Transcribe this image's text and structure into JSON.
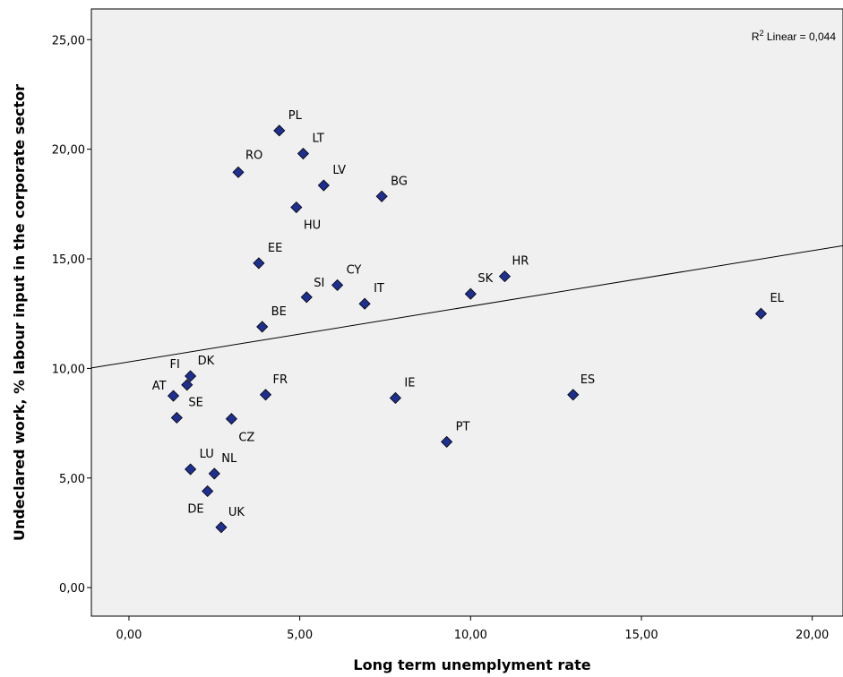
{
  "chart_data": {
    "type": "scatter",
    "title": "",
    "xlabel": "Long term unemplyment rate",
    "ylabel": "Undeclared work, % labour input in the corporate sector",
    "xlim": [
      -1.1,
      20.9
    ],
    "ylim": [
      -1.3,
      26.4
    ],
    "x_ticks": [
      0,
      5,
      10,
      15,
      20
    ],
    "y_ticks": [
      0,
      5,
      10,
      15,
      20,
      25
    ],
    "x_tick_labels": [
      "0,00",
      "5,00",
      "10,00",
      "15,00",
      "20,00"
    ],
    "y_tick_labels": [
      "0,00",
      "5,00",
      "10,00",
      "15,00",
      "20,00",
      "25,00"
    ],
    "grid": false,
    "marker_color": "#1f2f8f",
    "plot_background": "#f0f0f0",
    "fit_line": {
      "type": "linear",
      "intercept": 10.3,
      "slope": 0.2536
    },
    "annotation": {
      "prefix": "R",
      "superscript": "2",
      "text": " Linear = 0,044"
    },
    "points": [
      {
        "label": "PL",
        "x": 4.4,
        "y": 20.85
      },
      {
        "label": "LT",
        "x": 5.1,
        "y": 19.8
      },
      {
        "label": "RO",
        "x": 3.2,
        "y": 18.95
      },
      {
        "label": "LV",
        "x": 5.7,
        "y": 18.35
      },
      {
        "label": "BG",
        "x": 7.4,
        "y": 17.85
      },
      {
        "label": "HU",
        "x": 4.9,
        "y": 17.35
      },
      {
        "label": "EE",
        "x": 3.8,
        "y": 14.8
      },
      {
        "label": "CY",
        "x": 6.1,
        "y": 13.8
      },
      {
        "label": "SI",
        "x": 5.2,
        "y": 13.25
      },
      {
        "label": "SK",
        "x": 10.0,
        "y": 13.4
      },
      {
        "label": "HR",
        "x": 11.0,
        "y": 14.2
      },
      {
        "label": "IT",
        "x": 6.9,
        "y": 12.95
      },
      {
        "label": "BE",
        "x": 3.9,
        "y": 11.9
      },
      {
        "label": "EL",
        "x": 18.5,
        "y": 12.5
      },
      {
        "label": "DK",
        "x": 1.8,
        "y": 9.65
      },
      {
        "label": "FI",
        "x": 1.7,
        "y": 9.25
      },
      {
        "label": "AT",
        "x": 1.3,
        "y": 8.75
      },
      {
        "label": "FR",
        "x": 4.0,
        "y": 8.8
      },
      {
        "label": "ES",
        "x": 13.0,
        "y": 8.8
      },
      {
        "label": "IE",
        "x": 7.8,
        "y": 8.65
      },
      {
        "label": "SE",
        "x": 1.4,
        "y": 7.75
      },
      {
        "label": "CZ",
        "x": 3.0,
        "y": 7.7
      },
      {
        "label": "PT",
        "x": 9.3,
        "y": 6.65
      },
      {
        "label": "LU",
        "x": 1.8,
        "y": 5.4
      },
      {
        "label": "NL",
        "x": 2.5,
        "y": 5.2
      },
      {
        "label": "DE",
        "x": 2.3,
        "y": 4.4
      },
      {
        "label": "UK",
        "x": 2.7,
        "y": 2.75
      }
    ]
  }
}
